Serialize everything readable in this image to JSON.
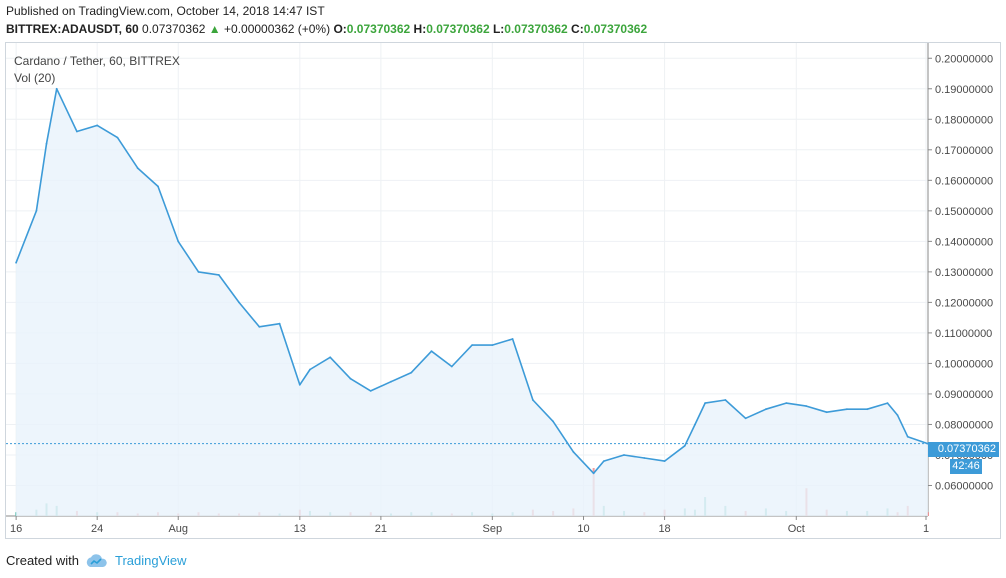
{
  "header": {
    "published": "Published on TradingView.com, October 14, 2018 14:47 IST",
    "symbol": "BITTREX:ADAUSDT, 60",
    "last": "0.07370362",
    "change": "+0.00000362 (+0%)",
    "o_label": "O:",
    "o_value": "0.07370362",
    "h_label": "H:",
    "h_value": "0.07370362",
    "l_label": "L:",
    "l_value": "0.07370362",
    "c_label": "C:",
    "c_value": "0.07370362"
  },
  "legend": {
    "title": "Cardano / Tether, 60, BITTREX",
    "volume": "Vol (20)"
  },
  "price_tag": "0.07370362",
  "time_tag": "42:46",
  "footer": {
    "created": "Created with",
    "brand": "TradingView"
  },
  "colors": {
    "line": "#3d9bd8",
    "fill": "#e8f3fb",
    "vol_up": "#6cc3b9",
    "vol_down": "#ef8a8a",
    "grid": "#eef1f4"
  },
  "chart_data": {
    "type": "area",
    "title": "Cardano / Tether, 60, BITTREX",
    "ylim": [
      0.05,
      0.205
    ],
    "y_ticks": [
      "0.20000000",
      "0.19000000",
      "0.18000000",
      "0.17000000",
      "0.16000000",
      "0.15000000",
      "0.14000000",
      "0.13000000",
      "0.12000000",
      "0.11000000",
      "0.10000000",
      "0.09000000",
      "0.08000000",
      "0.07000000",
      "0.06000000"
    ],
    "x_ticks": [
      "16",
      "24",
      "Aug",
      "13",
      "21",
      "Sep",
      "10",
      "18",
      "Oct",
      "1"
    ],
    "x_dates": [
      "2018-07-16",
      "2018-07-18",
      "2018-07-19",
      "2018-07-20",
      "2018-07-22",
      "2018-07-24",
      "2018-07-26",
      "2018-07-28",
      "2018-07-30",
      "2018-08-01",
      "2018-08-03",
      "2018-08-05",
      "2018-08-07",
      "2018-08-09",
      "2018-08-11",
      "2018-08-13",
      "2018-08-14",
      "2018-08-16",
      "2018-08-18",
      "2018-08-20",
      "2018-08-22",
      "2018-08-24",
      "2018-08-26",
      "2018-08-28",
      "2018-08-30",
      "2018-09-01",
      "2018-09-03",
      "2018-09-05",
      "2018-09-07",
      "2018-09-09",
      "2018-09-11",
      "2018-09-12",
      "2018-09-14",
      "2018-09-16",
      "2018-09-18",
      "2018-09-20",
      "2018-09-21",
      "2018-09-22",
      "2018-09-24",
      "2018-09-26",
      "2018-09-28",
      "2018-09-30",
      "2018-10-02",
      "2018-10-04",
      "2018-10-06",
      "2018-10-08",
      "2018-10-10",
      "2018-10-11",
      "2018-10-12",
      "2018-10-14"
    ],
    "series": [
      {
        "values": [
          0.133,
          0.15,
          0.172,
          0.19,
          0.176,
          0.178,
          0.174,
          0.164,
          0.158,
          0.14,
          0.13,
          0.129,
          0.12,
          0.112,
          0.113,
          0.093,
          0.098,
          0.102,
          0.095,
          0.091,
          0.094,
          0.097,
          0.104,
          0.099,
          0.106,
          0.106,
          0.108,
          0.088,
          0.081,
          0.071,
          0.064,
          0.068,
          0.07,
          0.069,
          0.068,
          0.073,
          0.08,
          0.087,
          0.088,
          0.082,
          0.085,
          0.087,
          0.086,
          0.084,
          0.085,
          0.085,
          0.087,
          0.083,
          0.076,
          0.0737
        ]
      }
    ],
    "volume": [
      {
        "values": [
          0.3,
          0.5,
          1.0,
          0.8,
          0.4,
          0.3,
          0.3,
          0.2,
          0.3,
          0.2,
          0.3,
          0.2,
          0.2,
          0.3,
          0.2,
          0.5,
          0.4,
          0.3,
          0.3,
          0.3,
          0.2,
          0.3,
          0.3,
          0.2,
          0.3,
          0.2,
          0.3,
          0.5,
          0.4,
          0.6,
          3.8,
          0.8,
          0.4,
          0.3,
          0.5,
          0.6,
          0.5,
          1.5,
          0.8,
          0.4,
          0.6,
          0.4,
          2.2,
          0.5,
          0.4,
          0.4,
          0.6,
          0.3,
          0.8,
          0.3
        ]
      }
    ]
  }
}
